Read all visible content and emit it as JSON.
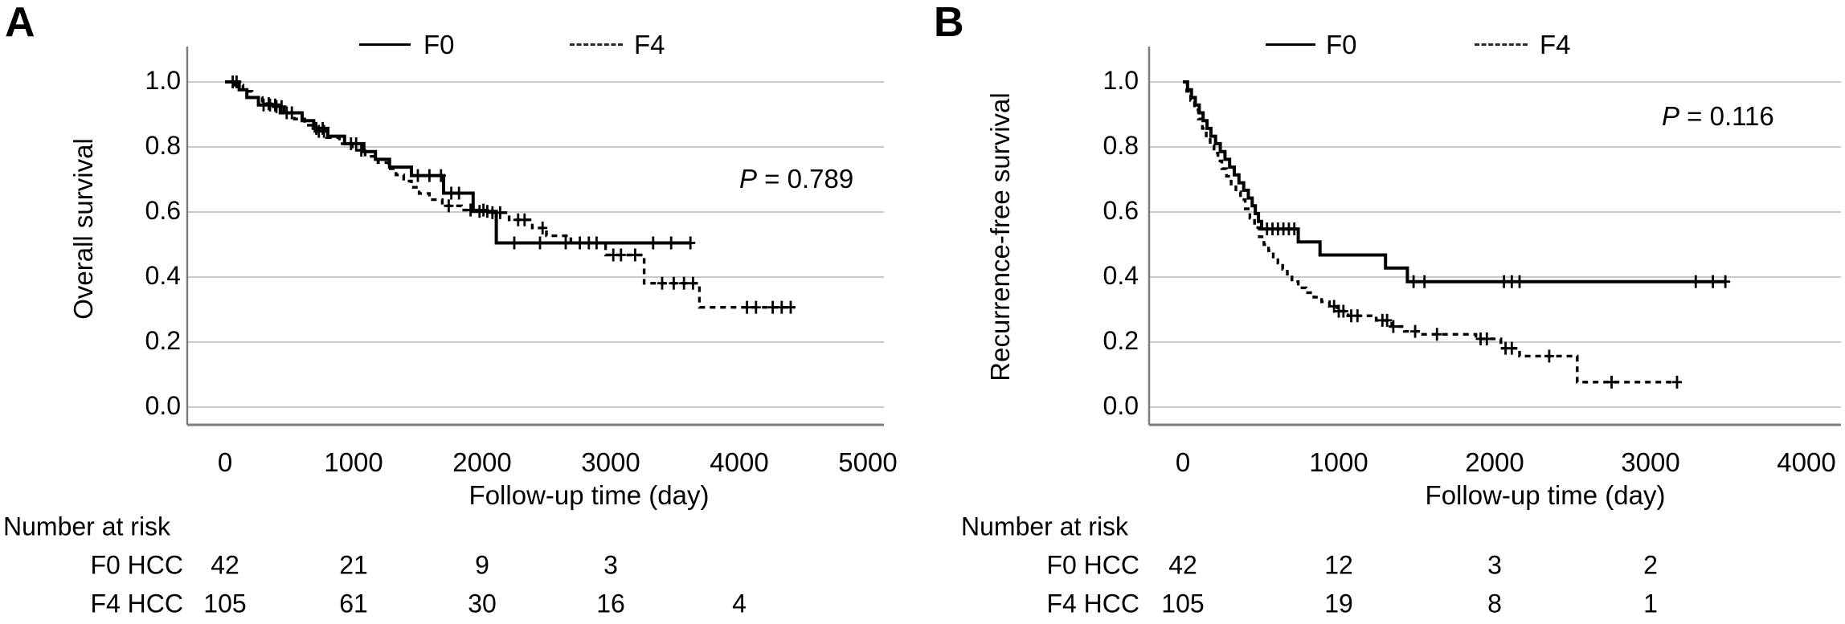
{
  "figure": {
    "background": "#ffffff",
    "text_color": "#000000",
    "grid_color": "#c9c9c9",
    "axis_color": "#7d7d7d",
    "curve_color": "#000000",
    "panels": [
      {
        "label": "A",
        "legend": {
          "items": [
            {
              "label": "F0",
              "line": "solid"
            },
            {
              "label": "F4",
              "line": "dashed"
            }
          ]
        },
        "p_label": "P",
        "p_text": " = 0.789",
        "y_title": "Overall survival",
        "x_title": "Follow-up time (day)",
        "y_tick_labels": [
          "1.0",
          "0.8",
          "0.6",
          "0.4",
          "0.2",
          "0.0"
        ],
        "x_tick_labels": [
          "0",
          "1000",
          "2000",
          "3000",
          "4000",
          "5000"
        ],
        "risk_table": {
          "title": "Number at risk",
          "rows": [
            {
              "label": "F0 HCC",
              "values": [
                "42",
                "21",
                "9",
                "3"
              ]
            },
            {
              "label": "F4 HCC",
              "values": [
                "105",
                "61",
                "30",
                "16",
                "4"
              ]
            }
          ]
        }
      },
      {
        "label": "B",
        "legend": {
          "items": [
            {
              "label": "F0",
              "line": "solid"
            },
            {
              "label": "F4",
              "line": "dashed"
            }
          ]
        },
        "p_label": "P",
        "p_text": " = 0.116",
        "y_title": "Recurrence-free survival",
        "x_title": "Follow-up time (day)",
        "y_tick_labels": [
          "1.0",
          "0.8",
          "0.6",
          "0.4",
          "0.2",
          "0.0"
        ],
        "x_tick_labels": [
          "0",
          "1000",
          "2000",
          "3000",
          "4000"
        ],
        "risk_table": {
          "title": "Number at risk",
          "rows": [
            {
              "label": "F0 HCC",
              "values": [
                "42",
                "12",
                "3",
                "2"
              ]
            },
            {
              "label": "F4 HCC",
              "values": [
                "105",
                "19",
                "8",
                "1"
              ]
            }
          ]
        }
      }
    ]
  },
  "chart_data": [
    {
      "type": "line",
      "subtype": "kaplan_meier_step",
      "title": "Overall survival, F0 vs F4 HCC",
      "xlabel": "Follow-up time (day)",
      "ylabel": "Overall survival",
      "xlim": [
        0,
        5125
      ],
      "ylim": [
        0.0,
        1.0
      ],
      "x_ticks": [
        0,
        1000,
        2000,
        3000,
        4000,
        5000
      ],
      "y_ticks": [
        0.0,
        0.2,
        0.4,
        0.6,
        0.8,
        1.0
      ],
      "grid": "horizontal",
      "legend_position": "top-center",
      "p_value": 0.789,
      "series": [
        {
          "name": "F0",
          "line": "solid",
          "n": 42,
          "steps": [
            [
              0,
              1.0
            ],
            [
              110,
              0.976
            ],
            [
              170,
              0.952
            ],
            [
              260,
              0.929
            ],
            [
              430,
              0.905
            ],
            [
              600,
              0.881
            ],
            [
              690,
              0.857
            ],
            [
              800,
              0.833
            ],
            [
              930,
              0.81
            ],
            [
              1080,
              0.786
            ],
            [
              1170,
              0.762
            ],
            [
              1280,
              0.738
            ],
            [
              1450,
              0.712
            ],
            [
              1700,
              0.658
            ],
            [
              1930,
              0.602
            ],
            [
              2110,
              0.505
            ]
          ],
          "end_day": 3620,
          "censor_days": [
            60,
            90,
            300,
            350,
            390,
            480,
            520,
            710,
            760,
            980,
            1020,
            1500,
            1590,
            1680,
            1760,
            1820,
            1980,
            2040,
            2250,
            2450,
            2650,
            3330,
            3470,
            3620
          ]
        },
        {
          "name": "F4",
          "line": "dashed",
          "n": 105,
          "steps": [
            [
              0,
              1.0
            ],
            [
              70,
              0.99
            ],
            [
              140,
              0.971
            ],
            [
              210,
              0.952
            ],
            [
              290,
              0.933
            ],
            [
              380,
              0.924
            ],
            [
              460,
              0.905
            ],
            [
              540,
              0.886
            ],
            [
              620,
              0.867
            ],
            [
              700,
              0.848
            ],
            [
              790,
              0.829
            ],
            [
              890,
              0.81
            ],
            [
              990,
              0.79
            ],
            [
              1090,
              0.771
            ],
            [
              1190,
              0.752
            ],
            [
              1270,
              0.733
            ],
            [
              1330,
              0.714
            ],
            [
              1390,
              0.695
            ],
            [
              1450,
              0.676
            ],
            [
              1510,
              0.657
            ],
            [
              1590,
              0.638
            ],
            [
              1690,
              0.619
            ],
            [
              1840,
              0.606
            ],
            [
              2060,
              0.598
            ],
            [
              2210,
              0.576
            ],
            [
              2390,
              0.551
            ],
            [
              2500,
              0.527
            ],
            [
              2690,
              0.505
            ],
            [
              2960,
              0.468
            ],
            [
              3260,
              0.381
            ],
            [
              3690,
              0.307
            ]
          ],
          "end_day": 4430,
          "censor_days": [
            340,
            400,
            440,
            730,
            770,
            1060,
            1740,
            1910,
            2010,
            2080,
            2140,
            2280,
            2330,
            2470,
            2760,
            2830,
            2890,
            3020,
            3080,
            3190,
            3400,
            3490,
            3570,
            3640,
            4060,
            4130,
            4260,
            4330,
            4400
          ]
        }
      ],
      "number_at_risk": {
        "times": [
          0,
          1000,
          2000,
          3000,
          4000
        ],
        "F0 HCC": [
          42,
          21,
          9,
          3
        ],
        "F4 HCC": [
          105,
          61,
          30,
          16,
          4
        ]
      }
    },
    {
      "type": "line",
      "subtype": "kaplan_meier_step",
      "title": "Recurrence-free survival, F0 vs F4 HCC",
      "xlabel": "Follow-up time (day)",
      "ylabel": "Recurrence-free survival",
      "xlim": [
        0,
        4220
      ],
      "ylim": [
        0.0,
        1.0
      ],
      "x_ticks": [
        0,
        1000,
        2000,
        3000,
        4000
      ],
      "y_ticks": [
        0.0,
        0.2,
        0.4,
        0.6,
        0.8,
        1.0
      ],
      "grid": "horizontal",
      "legend_position": "top-center",
      "p_value": 0.116,
      "series": [
        {
          "name": "F0",
          "line": "solid",
          "n": 42,
          "steps": [
            [
              0,
              1.0
            ],
            [
              30,
              0.976
            ],
            [
              55,
              0.952
            ],
            [
              80,
              0.929
            ],
            [
              105,
              0.905
            ],
            [
              130,
              0.881
            ],
            [
              155,
              0.857
            ],
            [
              180,
              0.833
            ],
            [
              210,
              0.81
            ],
            [
              240,
              0.786
            ],
            [
              270,
              0.762
            ],
            [
              300,
              0.738
            ],
            [
              330,
              0.714
            ],
            [
              360,
              0.69
            ],
            [
              390,
              0.667
            ],
            [
              420,
              0.643
            ],
            [
              445,
              0.619
            ],
            [
              465,
              0.595
            ],
            [
              485,
              0.571
            ],
            [
              505,
              0.548
            ],
            [
              740,
              0.508
            ],
            [
              880,
              0.468
            ],
            [
              1300,
              0.428
            ],
            [
              1440,
              0.386
            ]
          ],
          "end_day": 3480,
          "censor_days": [
            540,
            575,
            610,
            645,
            680,
            715,
            1480,
            1550,
            2060,
            2110,
            2160,
            3290,
            3400,
            3480
          ]
        },
        {
          "name": "F4",
          "line": "dashed",
          "n": 105,
          "steps": [
            [
              0,
              1.0
            ],
            [
              25,
              0.971
            ],
            [
              50,
              0.943
            ],
            [
              75,
              0.914
            ],
            [
              100,
              0.886
            ],
            [
              125,
              0.857
            ],
            [
              150,
              0.829
            ],
            [
              175,
              0.805
            ],
            [
              200,
              0.781
            ],
            [
              225,
              0.757
            ],
            [
              250,
              0.733
            ],
            [
              280,
              0.71
            ],
            [
              310,
              0.686
            ],
            [
              340,
              0.662
            ],
            [
              370,
              0.638
            ],
            [
              400,
              0.61
            ],
            [
              430,
              0.581
            ],
            [
              460,
              0.552
            ],
            [
              490,
              0.524
            ],
            [
              520,
              0.5
            ],
            [
              550,
              0.481
            ],
            [
              580,
              0.462
            ],
            [
              610,
              0.443
            ],
            [
              640,
              0.424
            ],
            [
              670,
              0.405
            ],
            [
              700,
              0.386
            ],
            [
              740,
              0.367
            ],
            [
              790,
              0.352
            ],
            [
              840,
              0.338
            ],
            [
              890,
              0.324
            ],
            [
              940,
              0.31
            ],
            [
              990,
              0.295
            ],
            [
              1060,
              0.281
            ],
            [
              1240,
              0.267
            ],
            [
              1340,
              0.248
            ],
            [
              1420,
              0.233
            ],
            [
              1510,
              0.224
            ],
            [
              1880,
              0.21
            ],
            [
              2040,
              0.181
            ],
            [
              2160,
              0.157
            ],
            [
              2530,
              0.077
            ]
          ],
          "end_day": 3170,
          "censor_days": [
            970,
            1000,
            1030,
            1080,
            1120,
            1280,
            1310,
            1350,
            1490,
            1630,
            1910,
            1950,
            2070,
            2110,
            2350,
            2750,
            3170
          ]
        }
      ],
      "number_at_risk": {
        "times": [
          0,
          1000,
          2000,
          3000
        ],
        "F0 HCC": [
          42,
          12,
          3,
          2
        ],
        "F4 HCC": [
          105,
          19,
          8,
          1
        ]
      }
    }
  ]
}
